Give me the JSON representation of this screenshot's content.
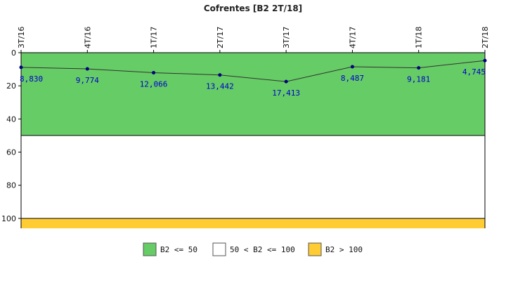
{
  "chart_data": {
    "type": "line",
    "title": "Cofrentes [B2 2T/18]",
    "xlabel": "",
    "ylabel": "",
    "categories": [
      "3T/16",
      "4T/16",
      "1T/17",
      "2T/17",
      "3T/17",
      "4T/17",
      "1T/18",
      "2T/18"
    ],
    "series": [
      {
        "values": [
          8.83,
          9.774,
          12.066,
          13.442,
          17.413,
          8.487,
          9.181,
          4.745
        ],
        "labels": [
          "8,830",
          "9,774",
          "12,066",
          "13,442",
          "17,413",
          "8,487",
          "9,181",
          "4,745"
        ],
        "color": "#000080"
      }
    ],
    "ylim": [
      0,
      106
    ],
    "y_inverted": true,
    "yticks": [
      "0",
      "20",
      "40",
      "60",
      "80",
      "100"
    ],
    "ytick_values": [
      0,
      20,
      40,
      60,
      80,
      100
    ],
    "bands": [
      {
        "from": 0,
        "to": 50,
        "color": "#66cc66"
      },
      {
        "from": 50,
        "to": 100,
        "color": "#ffffff"
      },
      {
        "from": 100,
        "to": 106,
        "color": "#ffcc33"
      }
    ],
    "legend": [
      {
        "label": "B2 <= 50",
        "color": "#66cc66"
      },
      {
        "label": "50 < B2 <= 100",
        "color": "#ffffff"
      },
      {
        "label": "B2 > 100",
        "color": "#ffcc33"
      }
    ],
    "legend_position": "bottom",
    "grid": false
  }
}
